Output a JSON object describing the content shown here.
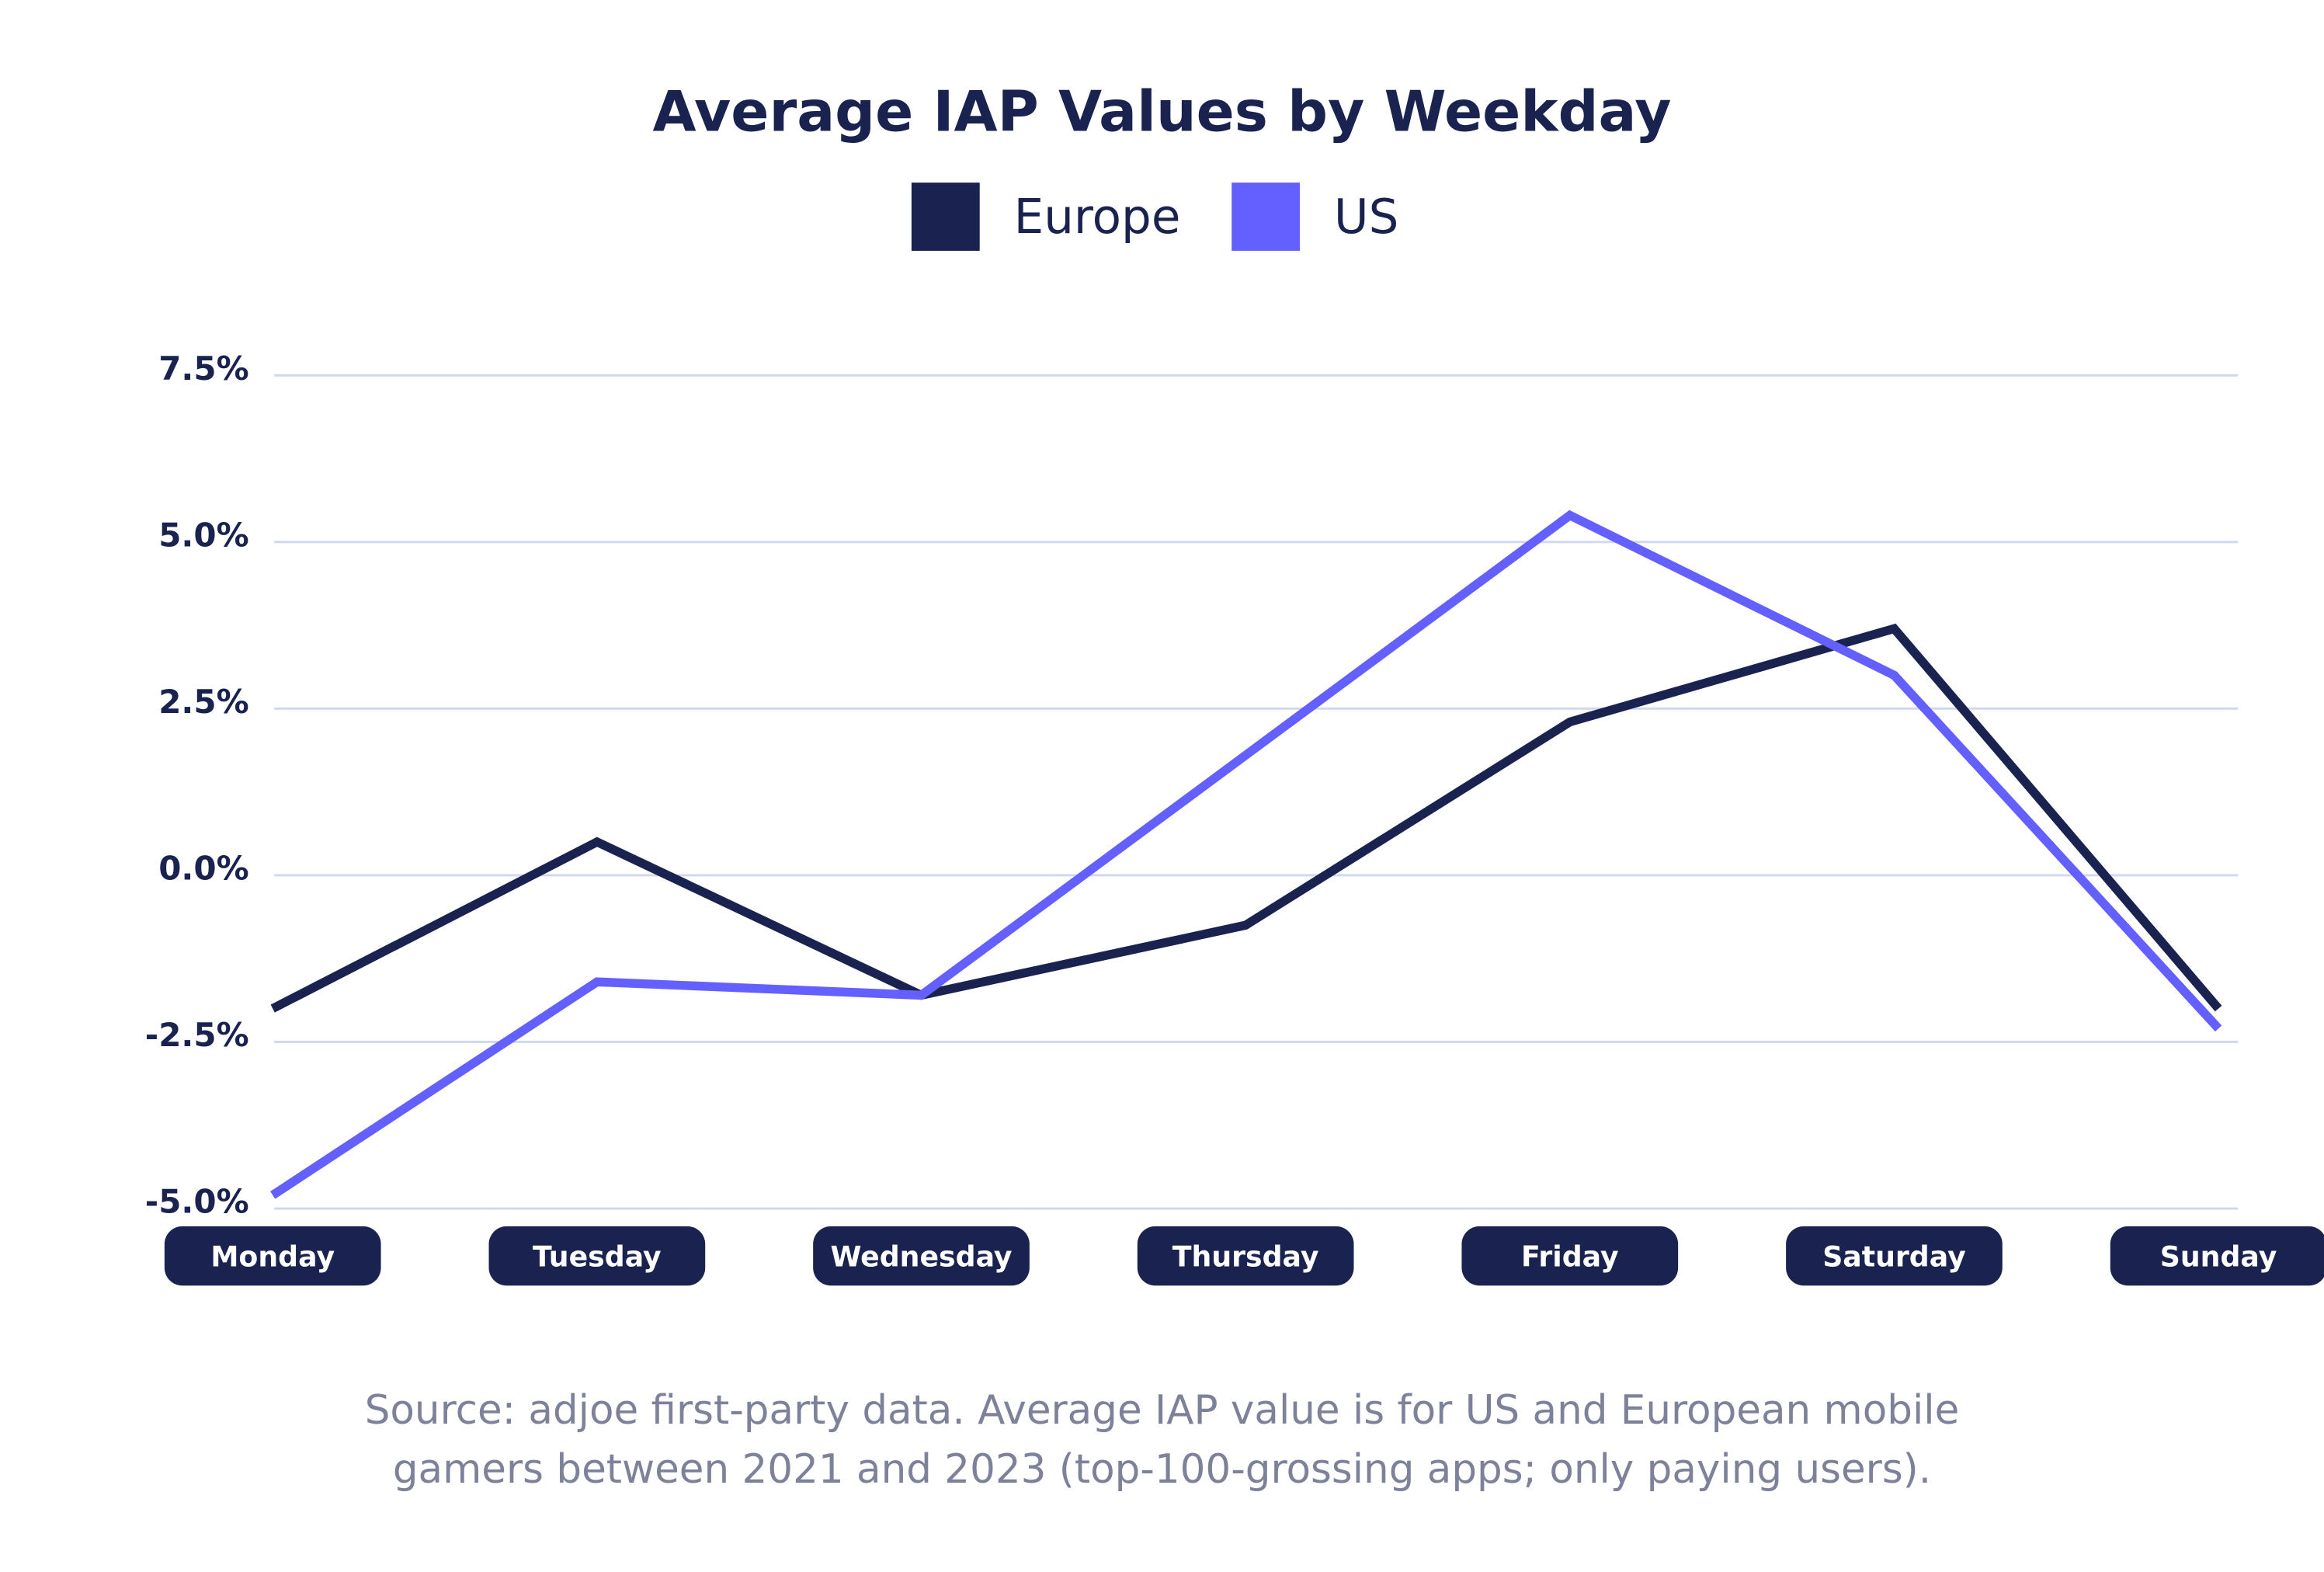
{
  "chart_data": {
    "type": "line",
    "title": "Average IAP Values by Weekday",
    "categories": [
      "Monday",
      "Tuesday",
      "Wednesday",
      "Thursday",
      "Friday",
      "Saturday",
      "Sunday"
    ],
    "series": [
      {
        "name": "Europe",
        "color": "#1a2350",
        "values": [
          -2.0,
          0.5,
          -1.8,
          -0.75,
          2.3,
          3.7,
          -2.0
        ]
      },
      {
        "name": "US",
        "color": "#6460ff",
        "values": [
          -4.8,
          -1.6,
          -1.8,
          1.8,
          5.4,
          3.0,
          -2.3
        ]
      }
    ],
    "yticks": [
      "7.5%",
      "5.0%",
      "2.5%",
      "0.0%",
      "-2.5%",
      "-5.0%"
    ],
    "ytick_values": [
      7.5,
      5.0,
      2.5,
      0.0,
      -2.5,
      -5.0
    ],
    "ylim": [
      -5.0,
      7.5
    ],
    "yunit": "%",
    "grid": true,
    "legend_position": "top-center",
    "xlabel": "",
    "ylabel": ""
  },
  "source_lines": [
    "Source: adjoe first-party data. Average IAP value is for US and European mobile",
    "gamers between 2021 and 2023 (top-100-grossing apps; only paying users)."
  ],
  "colors": {
    "grid": "#cfd8ee",
    "pill": "#1a2350"
  }
}
